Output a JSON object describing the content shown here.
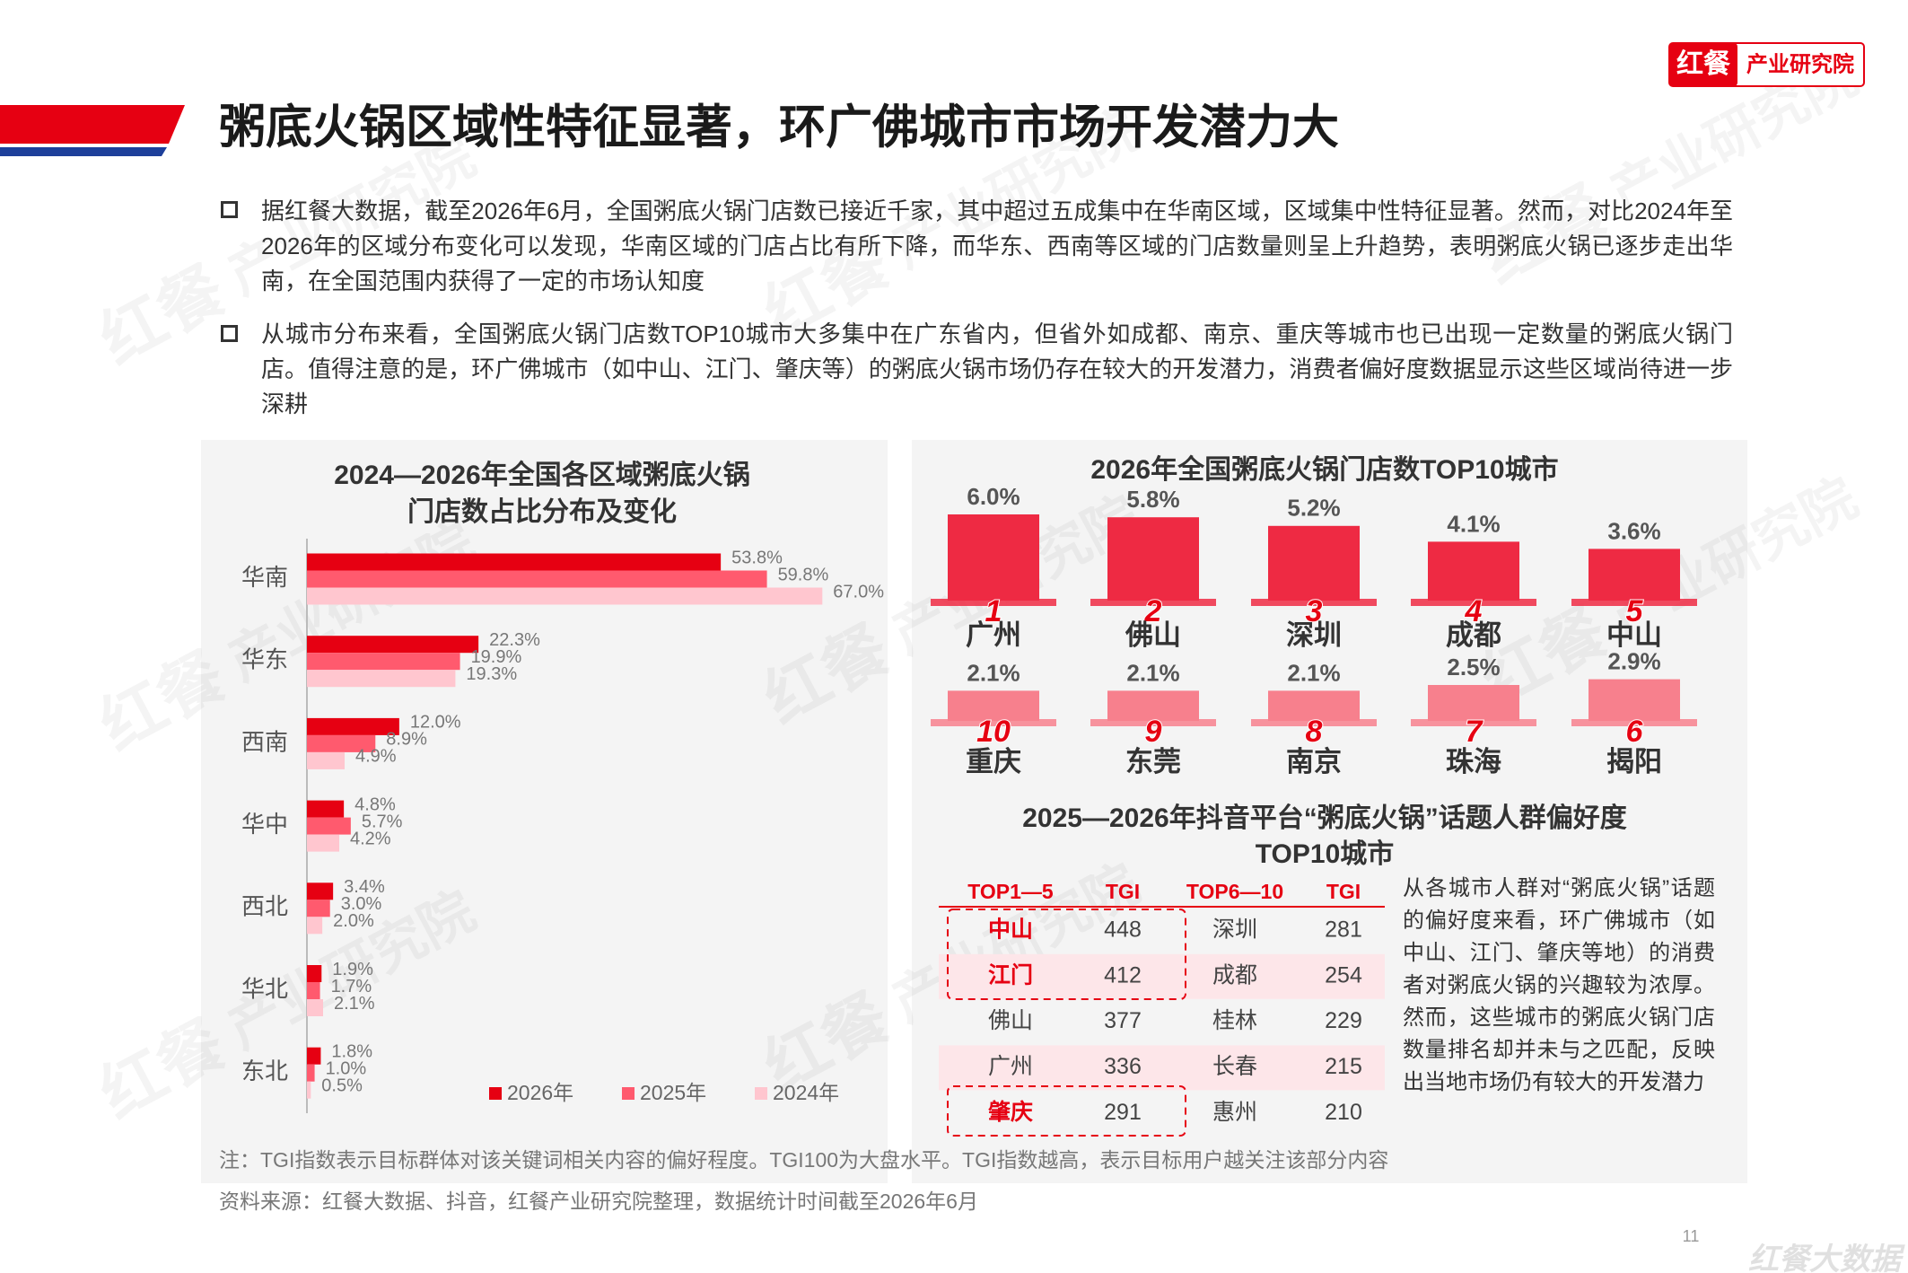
{
  "header": {
    "logo_brand": "红餐",
    "logo_text": "产业研究院",
    "title": "粥底火锅区域性特征显著，环广佛城市市场开发潜力大"
  },
  "bullets": [
    "据红餐大数据，截至2026年6月，全国粥底火锅门店数已接近千家，其中超过五成集中在华南区域，区域集中性特征显著。然而，对比2024年至2026年的区域分布变化可以发现，华南区域的门店占比有所下降，而华东、西南等区域的门店数量则呈上升趋势，表明粥底火锅已逐步走出华南，在全国范围内获得了一定的市场认知度",
    "从城市分布来看，全国粥底火锅门店数TOP10城市大多集中在广东省内，但省外如成都、南京、重庆等城市也已出现一定数量的粥底火锅门店。值得注意的是，环广佛城市（如中山、江门、肇庆等）的粥底火锅市场仍存在较大的开发潜力，消费者偏好度数据显示这些区域尚待进一步深耕"
  ],
  "chart_data": [
    {
      "type": "hbar",
      "title": [
        "2024—2026年全国各区域粥底火锅",
        "门店数占比分布及变化"
      ],
      "categories": [
        "华南",
        "华东",
        "西南",
        "华中",
        "西北",
        "华北",
        "东北"
      ],
      "xlim": [
        0,
        70
      ],
      "series": [
        {
          "name": "2026年",
          "color": "#e60012",
          "values": [
            53.8,
            22.3,
            12.0,
            4.8,
            3.4,
            1.9,
            1.8
          ],
          "value_labels": [
            "53.8%",
            "22.3%",
            "12.0%",
            "4.8%",
            "3.4%",
            "1.9%",
            "1.8%"
          ]
        },
        {
          "name": "2025年",
          "color": "#ff5a6e",
          "values": [
            59.8,
            19.9,
            8.9,
            5.7,
            3.0,
            1.7,
            1.0
          ],
          "value_labels": [
            "59.8%",
            "19.9%",
            "8.9%",
            "5.7%",
            "3.0%",
            "1.7%",
            "1.0%"
          ]
        },
        {
          "name": "2024年",
          "color": "#ffc6cf",
          "values": [
            67.0,
            19.3,
            4.9,
            4.2,
            2.0,
            2.1,
            0.5
          ],
          "value_labels": [
            "67.0%",
            "19.3%",
            "4.9%",
            "4.2%",
            "2.0%",
            "2.1%",
            "0.5%"
          ]
        }
      ]
    },
    {
      "type": "podium",
      "title": "2026年全国粥底火锅门店数TOP10城市",
      "categories": [
        "广州",
        "佛山",
        "深圳",
        "成都",
        "中山",
        "揭阳",
        "珠海",
        "南京",
        "东莞",
        "重庆"
      ],
      "ranks": [
        1,
        2,
        3,
        4,
        5,
        6,
        7,
        8,
        9,
        10
      ],
      "values": [
        6.0,
        5.8,
        5.2,
        4.1,
        3.6,
        2.9,
        2.5,
        2.1,
        2.1,
        2.1
      ],
      "value_labels": [
        "6.0%",
        "5.8%",
        "5.2%",
        "4.1%",
        "3.6%",
        "2.9%",
        "2.5%",
        "2.1%",
        "2.1%",
        "2.1%"
      ],
      "ylim": [
        0,
        6
      ],
      "colors": [
        "#ee2a43",
        "#f7808d"
      ]
    }
  ],
  "table": {
    "title": [
      "2025—2026年抖音平台“粥底火锅”话题人群偏好度",
      "TOP10城市"
    ],
    "columns": [
      "TOP1—5",
      "TGI",
      "TOP6—10",
      "TGI"
    ],
    "rows": [
      [
        "中山",
        448,
        "深圳",
        281
      ],
      [
        "江门",
        412,
        "成都",
        254
      ],
      [
        "佛山",
        377,
        "桂林",
        229
      ],
      [
        "广州",
        336,
        "长春",
        215
      ],
      [
        "肇庆",
        291,
        "惠州",
        210
      ]
    ],
    "highlighted_rows": [
      0,
      1,
      4
    ]
  },
  "table_note": "从各城市人群对“粥底火锅”话题的偏好度来看，环广佛城市（如中山、江门、肇庆等地）的消费者对粥底火锅的兴趣较为浓厚。然而，这些城市的粥底火锅门店数量排名却并未与之匹配，反映出当地市场仍有较大的开发潜力",
  "footnotes": {
    "note": "注：TGI指数表示目标群体对该关键词相关内容的偏好程度。TGI100为大盘水平。TGI指数越高，表示目标用户越关注该部分内容",
    "source": "资料来源：红餐大数据、抖音，红餐产业研究院整理，数据统计时间截至2026年6月"
  },
  "page_number": 11,
  "watermark": {
    "brand": "红餐",
    "text": "产业研究院"
  },
  "corner_logo": "红餐大数据"
}
